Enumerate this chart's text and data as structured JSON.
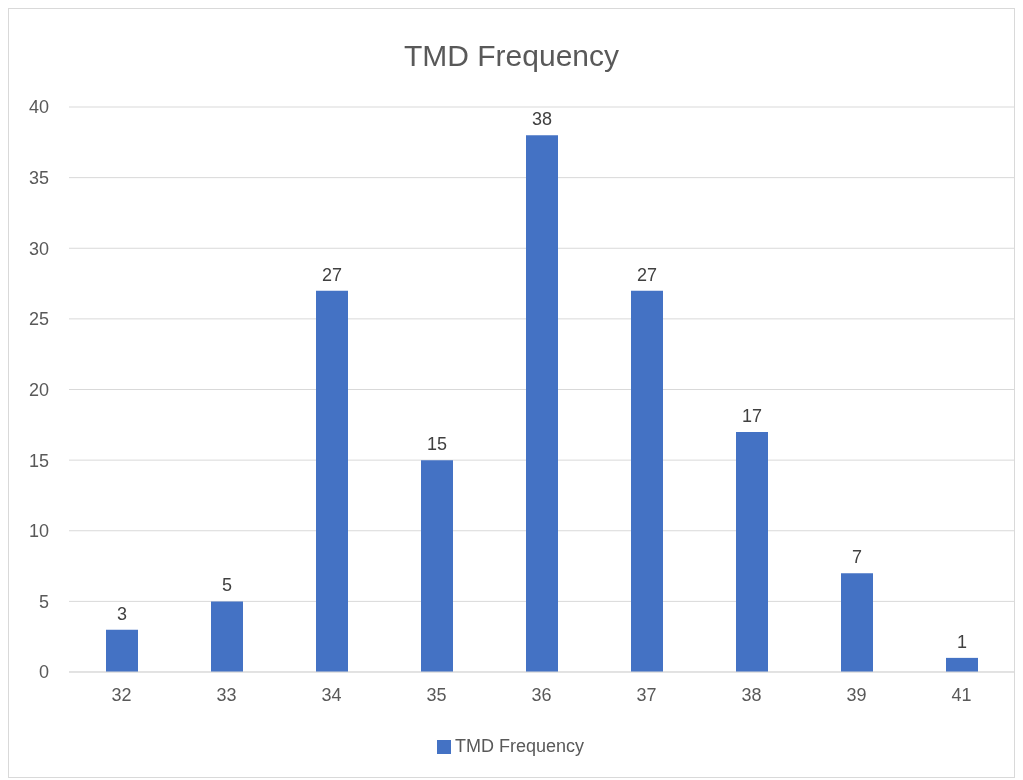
{
  "chart_data": {
    "type": "bar",
    "title": "TMD Frequency",
    "categories": [
      "32",
      "33",
      "34",
      "35",
      "36",
      "37",
      "38",
      "39",
      "41"
    ],
    "series": [
      {
        "name": "TMD Frequency",
        "color": "#4472c4",
        "values": [
          3,
          5,
          27,
          15,
          38,
          27,
          17,
          7,
          1
        ]
      }
    ],
    "ylim": [
      0,
      40
    ],
    "yticks": [
      0,
      5,
      10,
      15,
      20,
      25,
      30,
      35,
      40
    ],
    "grid": "y",
    "legend": "bottom",
    "data_labels": true
  }
}
